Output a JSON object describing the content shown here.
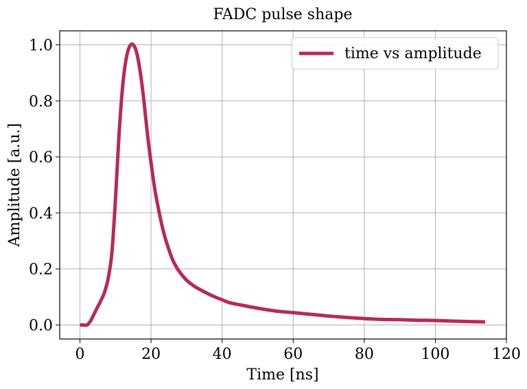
{
  "chart_data": {
    "type": "line",
    "title": "FADC pulse shape",
    "xlabel": "Time [ns]",
    "ylabel": "Amplitude [a.u.]",
    "xlim": [
      -5.7,
      120
    ],
    "ylim": [
      -0.05,
      1.05
    ],
    "xticks": [
      0,
      20,
      40,
      60,
      80,
      100,
      120
    ],
    "yticks": [
      0.0,
      0.2,
      0.4,
      0.6,
      0.8,
      1.0
    ],
    "xtick_labels": [
      "0",
      "20",
      "40",
      "60",
      "80",
      "100",
      "120"
    ],
    "ytick_labels": [
      "0.0",
      "0.2",
      "0.4",
      "0.6",
      "0.8",
      "1.0"
    ],
    "grid": true,
    "legend_position": "top-right",
    "series": [
      {
        "name": "time vs amplitude",
        "color": "#b8295a",
        "x": [
          0,
          1,
          2,
          3,
          4,
          5,
          6,
          7,
          8,
          9,
          10,
          11,
          12,
          13,
          14,
          15,
          16,
          17,
          18,
          19,
          20,
          21,
          22,
          23,
          24,
          25,
          26,
          27,
          28,
          30,
          32,
          34,
          36,
          38,
          40,
          42,
          45,
          50,
          55,
          60,
          65,
          70,
          75,
          80,
          85,
          90,
          95,
          100,
          105,
          110,
          114
        ],
        "y": [
          0.0,
          0.0,
          0.0,
          0.015,
          0.04,
          0.065,
          0.09,
          0.12,
          0.17,
          0.26,
          0.45,
          0.68,
          0.85,
          0.95,
          0.995,
          1.0,
          0.97,
          0.9,
          0.8,
          0.68,
          0.58,
          0.49,
          0.42,
          0.36,
          0.31,
          0.27,
          0.235,
          0.21,
          0.19,
          0.16,
          0.14,
          0.125,
          0.112,
          0.1,
          0.09,
          0.08,
          0.072,
          0.06,
          0.05,
          0.044,
          0.038,
          0.032,
          0.027,
          0.023,
          0.02,
          0.019,
          0.017,
          0.016,
          0.014,
          0.012,
          0.011
        ]
      }
    ]
  }
}
